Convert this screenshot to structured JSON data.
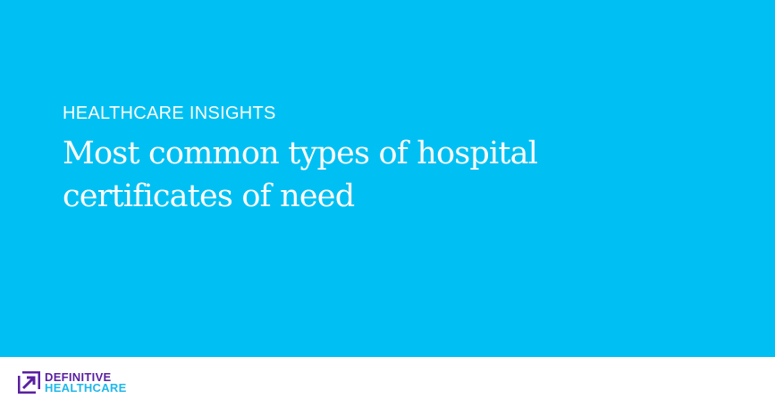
{
  "banner": {
    "eyebrow": "HEALTHCARE INSIGHTS",
    "title": "Most common types of hospital certificates of need",
    "background_color": "#00c0f3"
  },
  "footer": {
    "logo": {
      "icon": "arrow-up-right-square-icon",
      "line1": "DEFINITIVE",
      "line2": "HEALTHCARE",
      "colors": {
        "primary": "#5a1fa0",
        "secondary": "#1fb8ea"
      }
    }
  }
}
